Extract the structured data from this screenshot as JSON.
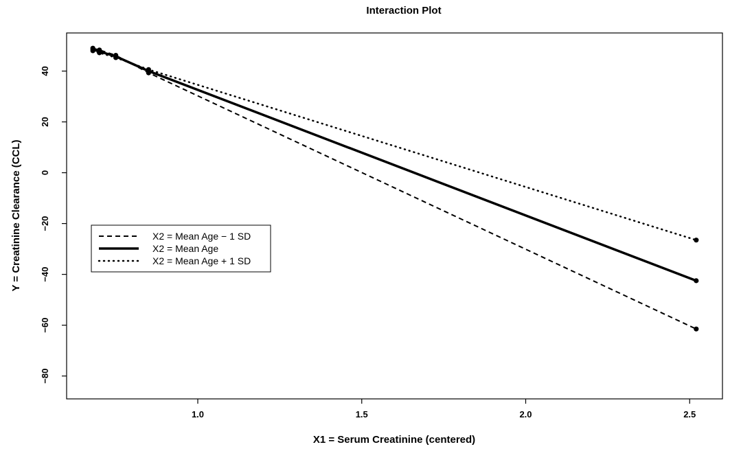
{
  "chart_data": {
    "type": "line",
    "title": "Interaction Plot",
    "xlabel": "X1 = Serum Creatinine (centered)",
    "ylabel": "Y = Creatinine Clearance (CCL)",
    "xlim": [
      0.6,
      2.6
    ],
    "ylim": [
      -89,
      55
    ],
    "x_ticks": [
      1.0,
      1.5,
      2.0,
      2.5
    ],
    "x_tick_labels": [
      "1.0",
      "1.5",
      "2.0",
      "2.5"
    ],
    "y_ticks": [
      -80,
      -60,
      -40,
      -20,
      0,
      20,
      40
    ],
    "y_tick_labels": [
      "−80",
      "−60",
      "−40",
      "−20",
      "0",
      "20",
      "40"
    ],
    "legend_position": "left",
    "grid": false,
    "series": [
      {
        "name": "X2 = Mean Age − 1 SD",
        "linestyle": "dashed",
        "x": [
          0.68,
          0.7,
          0.75,
          0.85,
          2.52
        ],
        "y": [
          49,
          48.3,
          46.2,
          39.3,
          -61.5
        ]
      },
      {
        "name": "X2 = Mean Age",
        "linestyle": "solid",
        "x": [
          0.68,
          0.7,
          0.75,
          0.85,
          2.52
        ],
        "y": [
          48.5,
          47.7,
          45.8,
          40,
          -42.5
        ]
      },
      {
        "name": "X2 = Mean Age + 1 SD",
        "linestyle": "dotted",
        "x": [
          0.68,
          0.7,
          0.75,
          0.85,
          2.52
        ],
        "y": [
          48,
          47.2,
          45.3,
          40.6,
          -26.5
        ]
      }
    ]
  }
}
